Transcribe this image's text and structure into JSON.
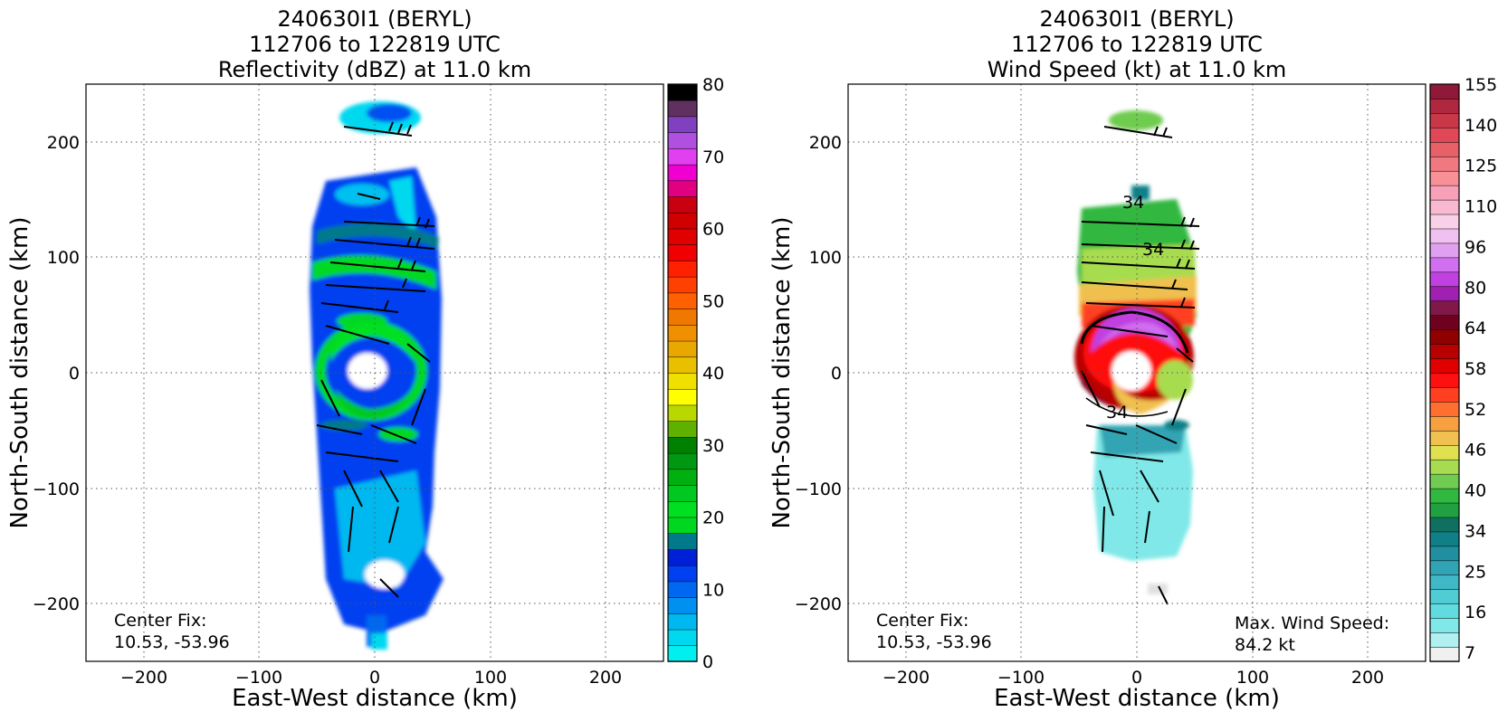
{
  "chart_data": [
    {
      "type": "heatmap",
      "title": [
        "240630I1 (BERYL)",
        "112706 to 122819 UTC",
        "Reflectivity (dBZ) at 11.0 km"
      ],
      "xlabel": "East-West distance (km)",
      "ylabel": "North-South distance (km)",
      "xlim": [
        -250,
        250
      ],
      "ylim": [
        -250,
        250
      ],
      "xticks": [
        -200,
        -100,
        0,
        100,
        200
      ],
      "yticks": [
        -200,
        -100,
        0,
        100,
        200
      ],
      "grid": true,
      "annotations": {
        "center_fix_label": "Center Fix:",
        "center_fix_value": "10.53, -53.96"
      },
      "colorbar": {
        "min": 0,
        "max": 80,
        "ticks": [
          0,
          10,
          20,
          30,
          40,
          50,
          60,
          70,
          80
        ],
        "colors": [
          "#00f0f0",
          "#00d8f0",
          "#00b8f0",
          "#0090f0",
          "#0068f0",
          "#0040f0",
          "#0020d8",
          "#007a8a",
          "#00d820",
          "#00e020",
          "#00c820",
          "#00b010",
          "#009810",
          "#008000",
          "#60b000",
          "#b8d800",
          "#ffff00",
          "#f0e000",
          "#e8c000",
          "#e8a800",
          "#f09000",
          "#f07800",
          "#ff6000",
          "#ff4000",
          "#ff2000",
          "#f00000",
          "#e00000",
          "#d00000",
          "#c80010",
          "#e00080",
          "#f000d0",
          "#e040f0",
          "#b050e0",
          "#8040c0",
          "#603060",
          "#000000"
        ]
      },
      "field": {
        "x_range": [
          -60,
          60
        ],
        "y_range": [
          -240,
          235
        ],
        "dominant_values_dbz": [
          5,
          12,
          20
        ],
        "eye_center": [
          0,
          0
        ]
      }
    },
    {
      "type": "heatmap",
      "title": [
        "240630I1 (BERYL)",
        "112706 to 122819 UTC",
        "Wind Speed (kt) at 11.0 km"
      ],
      "xlabel": "East-West distance (km)",
      "ylabel": "North-South distance (km)",
      "xlim": [
        -250,
        250
      ],
      "ylim": [
        -250,
        250
      ],
      "xticks": [
        -200,
        -100,
        0,
        100,
        200
      ],
      "yticks": [
        -200,
        -100,
        0,
        100,
        200
      ],
      "grid": true,
      "annotations": {
        "center_fix_label": "Center Fix:",
        "center_fix_value": "10.53, -53.96",
        "max_wind_label": "Max. Wind Speed:",
        "max_wind_value": "84.2 kt",
        "contour_labels": [
          "34",
          "34",
          "34"
        ]
      },
      "colorbar": {
        "ticks": [
          7,
          16,
          25,
          34,
          40,
          46,
          52,
          58,
          64,
          80,
          96,
          110,
          125,
          140,
          155
        ],
        "colors": [
          "#f0f0f0",
          "#b0f0f0",
          "#80e8e8",
          "#60dce0",
          "#50ccd4",
          "#40b8c8",
          "#30a4b4",
          "#2090a0",
          "#108088",
          "#107060",
          "#20a040",
          "#30b840",
          "#70cc50",
          "#a8dc50",
          "#e0e050",
          "#f0c050",
          "#f8a040",
          "#ff7030",
          "#ff4020",
          "#ff1010",
          "#e00000",
          "#b80000",
          "#900000",
          "#700020",
          "#801848",
          "#a020b0",
          "#c040e0",
          "#d070f0",
          "#e0a0f0",
          "#f0c0f0",
          "#f8d0e8",
          "#f8b8d0",
          "#f8a0b8",
          "#f89098",
          "#f07880",
          "#e86068",
          "#e04858",
          "#c83848",
          "#b02840",
          "#901838"
        ]
      },
      "field": {
        "x_range": [
          -60,
          60
        ],
        "y_range": [
          -205,
          225
        ],
        "max_wind_kt": 84.2,
        "eye_center": [
          0,
          0
        ]
      }
    }
  ]
}
